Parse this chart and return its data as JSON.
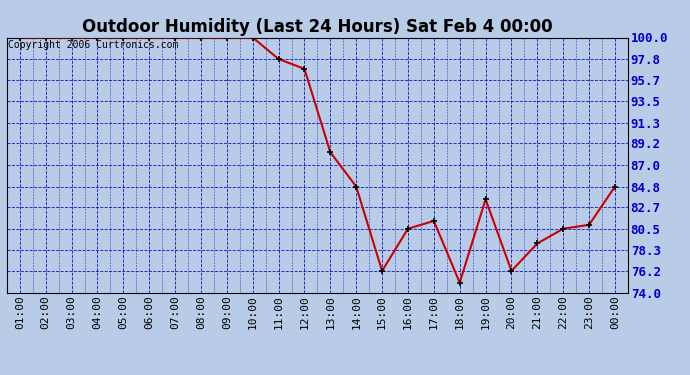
{
  "title": "Outdoor Humidity (Last 24 Hours) Sat Feb 4 00:00",
  "copyright": "Copyright 2006 Curtronics.com",
  "x_labels": [
    "01:00",
    "02:00",
    "03:00",
    "04:00",
    "05:00",
    "06:00",
    "07:00",
    "08:00",
    "09:00",
    "10:00",
    "11:00",
    "12:00",
    "13:00",
    "14:00",
    "15:00",
    "16:00",
    "17:00",
    "18:00",
    "19:00",
    "20:00",
    "21:00",
    "22:00",
    "23:00",
    "00:00"
  ],
  "x_values": [
    1,
    2,
    3,
    4,
    5,
    6,
    7,
    8,
    9,
    10,
    11,
    12,
    13,
    14,
    15,
    16,
    17,
    18,
    19,
    20,
    21,
    22,
    23,
    24
  ],
  "y_values": [
    100.0,
    100.0,
    100.0,
    100.0,
    100.0,
    100.0,
    100.0,
    100.0,
    100.0,
    100.0,
    97.8,
    96.8,
    88.3,
    84.8,
    76.2,
    80.5,
    81.3,
    75.0,
    83.5,
    76.2,
    79.0,
    80.5,
    80.9,
    84.8
  ],
  "y_ticks": [
    74.0,
    76.2,
    78.3,
    80.5,
    82.7,
    84.8,
    87.0,
    89.2,
    91.3,
    93.5,
    95.7,
    97.8,
    100.0
  ],
  "y_min": 74.0,
  "y_max": 100.0,
  "line_color": "#cc0000",
  "marker_color": "#000000",
  "bg_color": "#b8cce8",
  "fig_bg_color": "#b8cce8",
  "grid_color": "#0000bb",
  "title_fontsize": 12,
  "copyright_fontsize": 7,
  "ytick_fontsize": 9,
  "xtick_fontsize": 8
}
